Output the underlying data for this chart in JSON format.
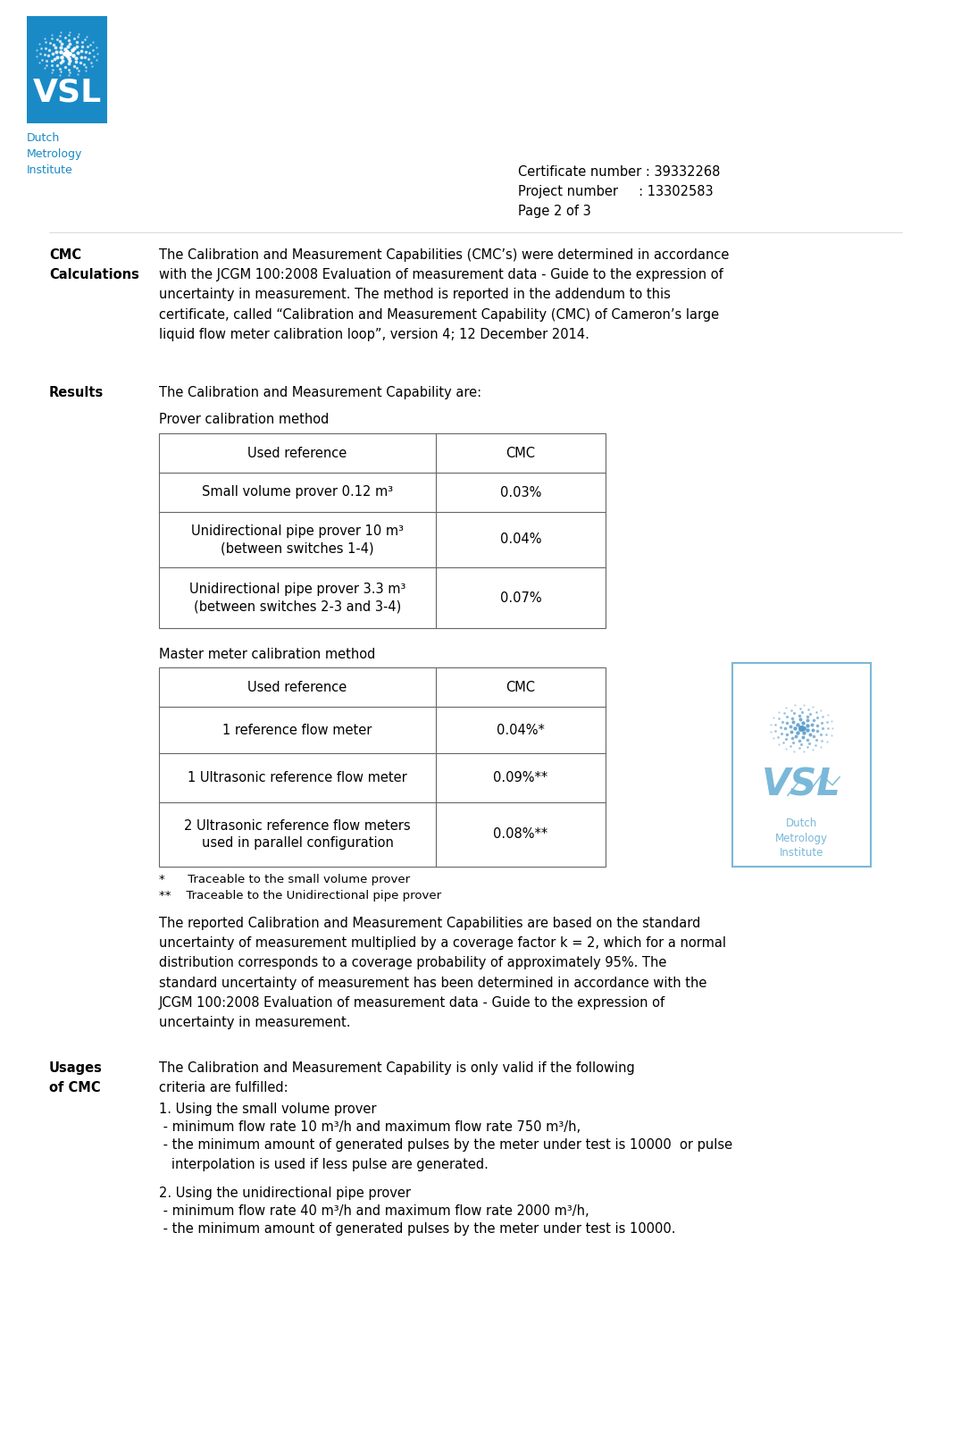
{
  "page_bg": "#ffffff",
  "header_bg": "#1a8ac7",
  "vsl_text": "VSL",
  "dutch_text": "Dutch\nMetrology\nInstitute",
  "dutch_text_color": "#1a8ac7",
  "cert_line1": "Certificate number : 39332268",
  "cert_line2": "Project number     : 13302583",
  "cert_line3": "Page 2 of 3",
  "section1_label": "CMC\nCalculations",
  "section1_body": "The Calibration and Measurement Capabilities (CMC’s) were determined in accordance\nwith the JCGM 100:2008 Evaluation of measurement data - Guide to the expression of\nuncertainty in measurement. The method is reported in the addendum to this\ncertificate, called “Calibration and Measurement Capability (CMC) of Cameron’s large\nliquid flow meter calibration loop”, version 4; 12 December 2014.",
  "results_label": "Results",
  "results_intro": "The Calibration and Measurement Capability are:",
  "prover_title": "Prover calibration method",
  "prover_col1_header": "Used reference",
  "prover_col2_header": "CMC",
  "prover_rows": [
    [
      "Small volume prover 0.12 m³",
      "0.03%"
    ],
    [
      "Unidirectional pipe prover 10 m³\n(between switches 1-4)",
      "0.04%"
    ],
    [
      "Unidirectional pipe prover 3.3 m³\n(between switches 2-3 and 3-4)",
      "0.07%"
    ]
  ],
  "master_title": "Master meter calibration method",
  "master_col1_header": "Used reference",
  "master_col2_header": "CMC",
  "master_rows": [
    [
      "1 reference flow meter",
      "0.04%*"
    ],
    [
      "1 Ultrasonic reference flow meter",
      "0.09%**"
    ],
    [
      "2 Ultrasonic reference flow meters\nused in parallel configuration",
      "0.08%**"
    ]
  ],
  "footnote1": "*      Traceable to the small volume prover",
  "footnote2": "**    Traceable to the Unidirectional pipe prover",
  "paragraph1": "The reported Calibration and Measurement Capabilities are based on the standard\nuncertainty of measurement multiplied by a coverage factor k = 2, which for a normal\ndistribution corresponds to a coverage probability of approximately 95%. The\nstandard uncertainty of measurement has been determined in accordance with the\nJCGM 100:2008 Evaluation of measurement data - Guide to the expression of\nuncertainty in measurement.",
  "section3_label": "Usages\nof CMC",
  "section3_body1": "The Calibration and Measurement Capability is only valid if the following\ncriteria are fulfilled:",
  "section3_item1": "1. Using the small volume prover",
  "section3_item2": " - minimum flow rate 10 m³/h and maximum flow rate 750 m³/h,",
  "section3_item3": " - the minimum amount of generated pulses by the meter under test is 10000  or pulse\n   interpolation is used if less pulse are generated.",
  "section3_item4": "2. Using the unidirectional pipe prover",
  "section3_item5": " - minimum flow rate 40 m³/h and maximum flow rate 2000 m³/h,",
  "section3_item6": " - the minimum amount of generated pulses by the meter under test is 10000."
}
